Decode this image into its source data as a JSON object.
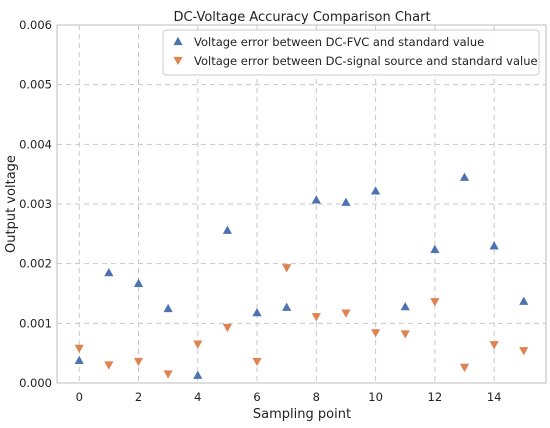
{
  "chart_data": {
    "type": "scatter",
    "title": "DC-Voltage Accuracy Comparison Chart",
    "xlabel": "Sampling point",
    "ylabel": "Output voltage",
    "xlim": [
      -0.75,
      15.75
    ],
    "ylim": [
      0,
      0.006
    ],
    "xticks": [
      0,
      2,
      4,
      6,
      8,
      10,
      12,
      14
    ],
    "yticks": [
      0.0,
      0.001,
      0.002,
      0.003,
      0.004,
      0.005,
      0.006
    ],
    "ytick_labels": [
      "0.000",
      "0.001",
      "0.002",
      "0.003",
      "0.004",
      "0.005",
      "0.006"
    ],
    "grid": true,
    "legend_position": "top-right",
    "x": [
      0,
      1,
      2,
      3,
      4,
      5,
      6,
      7,
      8,
      9,
      10,
      11,
      12,
      13,
      14,
      15
    ],
    "series": [
      {
        "name": "Voltage error between DC-FVC and standard value",
        "marker": "triangle-up",
        "color": "#4c72b0",
        "values": [
          0.00038,
          0.00185,
          0.00167,
          0.00125,
          0.00013,
          0.00256,
          0.00118,
          0.00127,
          0.00307,
          0.00303,
          0.00322,
          0.00128,
          0.00224,
          0.00345,
          0.0023,
          0.00137
        ]
      },
      {
        "name": "Voltage error between DC-signal source and standard value",
        "marker": "triangle-down",
        "color": "#dd8452",
        "values": [
          0.00058,
          0.0003,
          0.00036,
          0.00015,
          0.00065,
          0.00093,
          0.00036,
          0.00193,
          0.00111,
          0.00117,
          0.00084,
          0.00082,
          0.00136,
          0.00026,
          0.00064,
          0.00054
        ]
      }
    ]
  }
}
